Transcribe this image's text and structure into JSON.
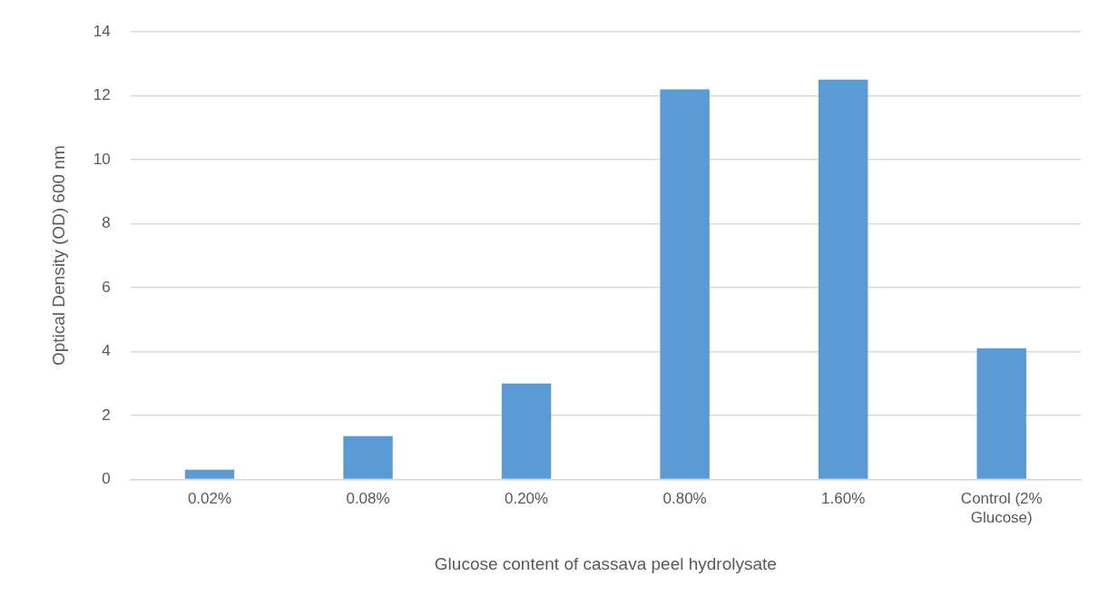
{
  "chart_data": {
    "type": "bar",
    "xlabel": "Glucose content of cassava peel hydrolysate",
    "ylabel": "Optical Density (OD) 600 nm",
    "categories": [
      "0.02%",
      "0.08%",
      "0.20%",
      "0.80%",
      "1.60%",
      "Control (2% Glucose)"
    ],
    "values": [
      0.3,
      1.35,
      3.0,
      12.2,
      12.5,
      4.1
    ],
    "color": "#5b9bd5",
    "ylim": [
      0,
      14
    ],
    "yticks": [
      0,
      2,
      4,
      6,
      8,
      10,
      12,
      14
    ],
    "grid": "y",
    "legend": false
  }
}
